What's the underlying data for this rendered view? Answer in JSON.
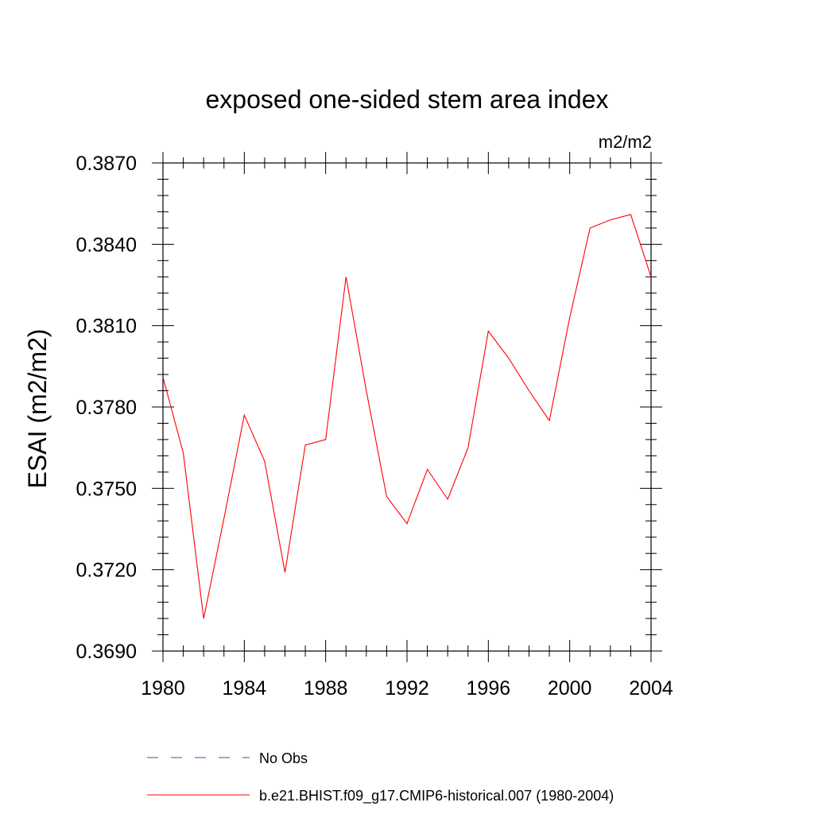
{
  "chart_data": {
    "type": "line",
    "title": "exposed one-sided stem area index",
    "units": "m2/m2",
    "ylabel": "ESAI  (m2/m2)",
    "xlabel": "",
    "xlim": [
      1980,
      2004
    ],
    "ylim": [
      0.369,
      0.387
    ],
    "x_ticks": [
      "1980",
      "1984",
      "1988",
      "1992",
      "1996",
      "2000",
      "2004"
    ],
    "y_ticks": [
      "0.3690",
      "0.3720",
      "0.3750",
      "0.3780",
      "0.3810",
      "0.3840",
      "0.3870"
    ],
    "series": [
      {
        "name": "b.e21.BHIST.f09_g17.CMIP6-historical.007 (1980-2004)",
        "color": "#ff0000",
        "style": "solid",
        "x": [
          1980,
          1981,
          1982,
          1983,
          1984,
          1985,
          1986,
          1987,
          1988,
          1989,
          1990,
          1991,
          1992,
          1993,
          1994,
          1995,
          1996,
          1997,
          1998,
          1999,
          2000,
          2001,
          2002,
          2003,
          2004
        ],
        "y": [
          0.3791,
          0.3763,
          0.3702,
          0.3739,
          0.3777,
          0.376,
          0.3719,
          0.3766,
          0.3768,
          0.3828,
          0.3786,
          0.3747,
          0.3737,
          0.3757,
          0.3746,
          0.3765,
          0.3808,
          0.3798,
          0.3786,
          0.3775,
          0.3813,
          0.3846,
          0.3849,
          0.3851,
          0.3828
        ]
      }
    ],
    "legend": [
      {
        "label": "No Obs",
        "color": "#4a4aa8",
        "style": "dashed"
      },
      {
        "label": "b.e21.BHIST.f09_g17.CMIP6-historical.007 (1980-2004)",
        "color": "#ff0000",
        "style": "solid"
      }
    ],
    "legend_position": "bottom",
    "grid": false
  }
}
